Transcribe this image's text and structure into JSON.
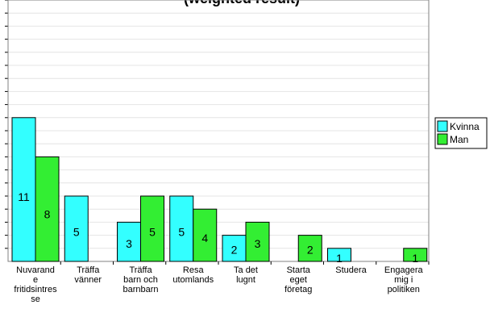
{
  "chart_data": {
    "type": "bar",
    "title": "(weighted result)",
    "categories": [
      [
        "Nuvarand",
        "e",
        "fritidsintres",
        "se"
      ],
      [
        "Träffa",
        "vänner"
      ],
      [
        "Träffa",
        "barn och",
        "barnbarn"
      ],
      [
        "Resa",
        "utomlands"
      ],
      [
        "Ta det",
        "lugnt"
      ],
      [
        "Starta",
        "eget",
        "företag"
      ],
      [
        "Studera"
      ],
      [
        "Engagera",
        "mig i",
        "politiken"
      ]
    ],
    "series": [
      {
        "name": "Kvinna",
        "color": "#33ffff",
        "values": [
          11,
          5,
          3,
          5,
          2,
          0,
          1,
          0
        ]
      },
      {
        "name": "Man",
        "color": "#33ee33",
        "values": [
          8,
          0,
          5,
          4,
          3,
          2,
          0,
          1
        ]
      }
    ],
    "ylim": [
      0,
      20
    ],
    "grid": true,
    "legend_position": "right"
  }
}
